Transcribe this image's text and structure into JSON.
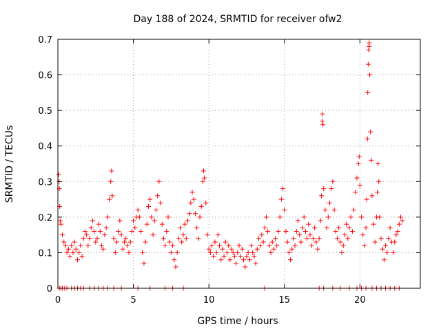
{
  "chart_data": {
    "type": "scatter",
    "title": "Day 188 of 2024, SRMTID for receiver ofw2",
    "xlabel": "GPS time / hours",
    "ylabel": "SRMTID / TECUs",
    "xlim": [
      0,
      24
    ],
    "ylim": [
      0,
      0.7
    ],
    "xticks": [
      0,
      5,
      10,
      15,
      20
    ],
    "xtick_labels": [
      "0",
      "5",
      "10",
      "15",
      "20"
    ],
    "yticks": [
      0,
      0.1,
      0.2,
      0.3,
      0.4,
      0.5,
      0.6,
      0.7
    ],
    "ytick_labels": [
      "0",
      "0.1",
      "0.2",
      "0.3",
      "0.4",
      "0.5",
      "0.6",
      "0.7"
    ],
    "grid": true,
    "marker": "+",
    "color": "#ff0000",
    "series": [
      {
        "name": "SRMTID",
        "points": [
          [
            0.05,
            0.32
          ],
          [
            0.08,
            0.3
          ],
          [
            0.1,
            0.28
          ],
          [
            0.12,
            0.23
          ],
          [
            0.15,
            0.19
          ],
          [
            0.2,
            0.18
          ],
          [
            0.3,
            0.15
          ],
          [
            0.4,
            0.13
          ],
          [
            0.5,
            0.12
          ],
          [
            0.6,
            0.1
          ],
          [
            0.7,
            0.11
          ],
          [
            0.8,
            0.09
          ],
          [
            0.9,
            0.12
          ],
          [
            1.0,
            0.1
          ],
          [
            1.1,
            0.13
          ],
          [
            1.2,
            0.11
          ],
          [
            1.3,
            0.08
          ],
          [
            1.4,
            0.1
          ],
          [
            1.5,
            0.12
          ],
          [
            1.6,
            0.09
          ],
          [
            1.7,
            0.14
          ],
          [
            1.8,
            0.16
          ],
          [
            1.9,
            0.15
          ],
          [
            2.0,
            0.12
          ],
          [
            2.1,
            0.14
          ],
          [
            2.2,
            0.17
          ],
          [
            2.3,
            0.19
          ],
          [
            2.4,
            0.16
          ],
          [
            2.5,
            0.13
          ],
          [
            2.6,
            0.14
          ],
          [
            2.7,
            0.18
          ],
          [
            2.8,
            0.16
          ],
          [
            2.9,
            0.12
          ],
          [
            3.0,
            0.11
          ],
          [
            3.1,
            0.15
          ],
          [
            3.2,
            0.17
          ],
          [
            3.3,
            0.2
          ],
          [
            3.4,
            0.25
          ],
          [
            3.5,
            0.3
          ],
          [
            3.55,
            0.33
          ],
          [
            3.6,
            0.26
          ],
          [
            3.7,
            0.14
          ],
          [
            3.8,
            0.1
          ],
          [
            3.9,
            0.13
          ],
          [
            4.0,
            0.16
          ],
          [
            4.1,
            0.19
          ],
          [
            4.2,
            0.15
          ],
          [
            4.3,
            0.11
          ],
          [
            4.4,
            0.13
          ],
          [
            4.5,
            0.14
          ],
          [
            4.6,
            0.12
          ],
          [
            4.7,
            0.1
          ],
          [
            4.8,
            0.13
          ],
          [
            4.9,
            0.16
          ],
          [
            5.0,
            0.19
          ],
          [
            5.1,
            0.17
          ],
          [
            5.2,
            0.2
          ],
          [
            5.3,
            0.22
          ],
          [
            5.4,
            0.2
          ],
          [
            5.5,
            0.16
          ],
          [
            5.6,
            0.1
          ],
          [
            5.7,
            0.07
          ],
          [
            5.8,
            0.13
          ],
          [
            5.9,
            0.18
          ],
          [
            6.0,
            0.23
          ],
          [
            6.1,
            0.25
          ],
          [
            6.2,
            0.2
          ],
          [
            6.3,
            0.15
          ],
          [
            6.4,
            0.19
          ],
          [
            6.5,
            0.22
          ],
          [
            6.6,
            0.26
          ],
          [
            6.7,
            0.3
          ],
          [
            6.8,
            0.24
          ],
          [
            6.9,
            0.18
          ],
          [
            7.0,
            0.14
          ],
          [
            7.1,
            0.12
          ],
          [
            7.2,
            0.16
          ],
          [
            7.3,
            0.2
          ],
          [
            7.4,
            0.13
          ],
          [
            7.5,
            0.1
          ],
          [
            7.6,
            0.12
          ],
          [
            7.7,
            0.08
          ],
          [
            7.8,
            0.06
          ],
          [
            7.9,
            0.1
          ],
          [
            8.0,
            0.14
          ],
          [
            8.1,
            0.17
          ],
          [
            8.2,
            0.13
          ],
          [
            8.3,
            0.15
          ],
          [
            8.4,
            0.18
          ],
          [
            8.5,
            0.14
          ],
          [
            8.6,
            0.19
          ],
          [
            8.7,
            0.21
          ],
          [
            8.8,
            0.24
          ],
          [
            8.9,
            0.27
          ],
          [
            9.0,
            0.25
          ],
          [
            9.1,
            0.21
          ],
          [
            9.2,
            0.17
          ],
          [
            9.3,
            0.14
          ],
          [
            9.4,
            0.2
          ],
          [
            9.5,
            0.23
          ],
          [
            9.6,
            0.3
          ],
          [
            9.65,
            0.33
          ],
          [
            9.7,
            0.31
          ],
          [
            9.8,
            0.24
          ],
          [
            9.9,
            0.15
          ],
          [
            10.0,
            0.11
          ],
          [
            10.1,
            0.1
          ],
          [
            10.2,
            0.12
          ],
          [
            10.3,
            0.09
          ],
          [
            10.4,
            0.13
          ],
          [
            10.5,
            0.1
          ],
          [
            10.6,
            0.15
          ],
          [
            10.7,
            0.12
          ],
          [
            10.8,
            0.08
          ],
          [
            10.9,
            0.11
          ],
          [
            11.0,
            0.09
          ],
          [
            11.1,
            0.13
          ],
          [
            11.2,
            0.1
          ],
          [
            11.3,
            0.12
          ],
          [
            11.4,
            0.08
          ],
          [
            11.5,
            0.11
          ],
          [
            11.6,
            0.1
          ],
          [
            11.7,
            0.09
          ],
          [
            11.8,
            0.07
          ],
          [
            11.9,
            0.1
          ],
          [
            12.0,
            0.12
          ],
          [
            12.1,
            0.09
          ],
          [
            12.2,
            0.11
          ],
          [
            12.3,
            0.08
          ],
          [
            12.4,
            0.06
          ],
          [
            12.5,
            0.09
          ],
          [
            12.6,
            0.1
          ],
          [
            12.7,
            0.08
          ],
          [
            12.8,
            0.12
          ],
          [
            12.9,
            0.1
          ],
          [
            13.0,
            0.09
          ],
          [
            13.1,
            0.07
          ],
          [
            13.2,
            0.11
          ],
          [
            13.3,
            0.14
          ],
          [
            13.4,
            0.12
          ],
          [
            13.5,
            0.15
          ],
          [
            13.6,
            0.13
          ],
          [
            13.7,
            0.17
          ],
          [
            13.8,
            0.2
          ],
          [
            13.9,
            0.16
          ],
          [
            14.0,
            0.12
          ],
          [
            14.1,
            0.1
          ],
          [
            14.2,
            0.13
          ],
          [
            14.3,
            0.11
          ],
          [
            14.4,
            0.14
          ],
          [
            14.5,
            0.12
          ],
          [
            14.6,
            0.16
          ],
          [
            14.7,
            0.2
          ],
          [
            14.8,
            0.25
          ],
          [
            14.9,
            0.28
          ],
          [
            15.0,
            0.22
          ],
          [
            15.1,
            0.16
          ],
          [
            15.2,
            0.13
          ],
          [
            15.3,
            0.1
          ],
          [
            15.4,
            0.08
          ],
          [
            15.5,
            0.11
          ],
          [
            15.6,
            0.14
          ],
          [
            15.7,
            0.12
          ],
          [
            15.8,
            0.16
          ],
          [
            15.9,
            0.19
          ],
          [
            16.0,
            0.15
          ],
          [
            16.1,
            0.13
          ],
          [
            16.2,
            0.17
          ],
          [
            16.3,
            0.2
          ],
          [
            16.4,
            0.16
          ],
          [
            16.5,
            0.14
          ],
          [
            16.6,
            0.18
          ],
          [
            16.7,
            0.15
          ],
          [
            16.8,
            0.12
          ],
          [
            16.9,
            0.14
          ],
          [
            17.0,
            0.17
          ],
          [
            17.1,
            0.13
          ],
          [
            17.2,
            0.11
          ],
          [
            17.3,
            0.14
          ],
          [
            17.4,
            0.19
          ],
          [
            17.45,
            0.26
          ],
          [
            17.5,
            0.47
          ],
          [
            17.52,
            0.49
          ],
          [
            17.55,
            0.46
          ],
          [
            17.6,
            0.28
          ],
          [
            17.7,
            0.22
          ],
          [
            17.8,
            0.17
          ],
          [
            17.9,
            0.2
          ],
          [
            18.0,
            0.24
          ],
          [
            18.1,
            0.28
          ],
          [
            18.2,
            0.3
          ],
          [
            18.3,
            0.22
          ],
          [
            18.4,
            0.16
          ],
          [
            18.5,
            0.14
          ],
          [
            18.6,
            0.17
          ],
          [
            18.7,
            0.13
          ],
          [
            18.8,
            0.1
          ],
          [
            18.9,
            0.12
          ],
          [
            19.0,
            0.15
          ],
          [
            19.1,
            0.18
          ],
          [
            19.2,
            0.14
          ],
          [
            19.3,
            0.17
          ],
          [
            19.4,
            0.2
          ],
          [
            19.5,
            0.16
          ],
          [
            19.6,
            0.22
          ],
          [
            19.7,
            0.27
          ],
          [
            19.8,
            0.31
          ],
          [
            19.9,
            0.35
          ],
          [
            19.95,
            0.37
          ],
          [
            20.0,
            0.29
          ],
          [
            20.1,
            0.2
          ],
          [
            20.2,
            0.15
          ],
          [
            20.3,
            0.12
          ],
          [
            20.4,
            0.17
          ],
          [
            20.45,
            0.25
          ],
          [
            20.5,
            0.42
          ],
          [
            20.52,
            0.55
          ],
          [
            20.55,
            0.63
          ],
          [
            20.58,
            0.67
          ],
          [
            20.6,
            0.68
          ],
          [
            20.62,
            0.69
          ],
          [
            20.65,
            0.6
          ],
          [
            20.7,
            0.44
          ],
          [
            20.75,
            0.36
          ],
          [
            20.8,
            0.26
          ],
          [
            20.9,
            0.18
          ],
          [
            21.0,
            0.13
          ],
          [
            21.1,
            0.2
          ],
          [
            21.15,
            0.27
          ],
          [
            21.2,
            0.35
          ],
          [
            21.25,
            0.3
          ],
          [
            21.3,
            0.2
          ],
          [
            21.4,
            0.14
          ],
          [
            21.5,
            0.11
          ],
          [
            21.6,
            0.08
          ],
          [
            21.7,
            0.12
          ],
          [
            21.8,
            0.1
          ],
          [
            21.9,
            0.14
          ],
          [
            22.0,
            0.17
          ],
          [
            22.1,
            0.13
          ],
          [
            22.2,
            0.1
          ],
          [
            22.3,
            0.13
          ],
          [
            22.4,
            0.15
          ],
          [
            22.5,
            0.16
          ],
          [
            22.6,
            0.18
          ],
          [
            22.7,
            0.2
          ],
          [
            22.8,
            0.19
          ]
        ],
        "zero_markers_x": [
          0.1,
          0.2,
          0.3,
          0.45,
          0.6,
          0.9,
          1.1,
          1.3,
          1.5,
          1.7,
          2.1,
          2.4,
          2.7,
          3.0,
          3.3,
          3.7,
          4.2,
          5.3,
          6.1,
          7.1,
          7.6,
          8.3,
          13.7,
          17.3,
          17.6,
          18.2,
          18.7,
          19.3,
          19.8,
          20.1,
          20.4,
          20.8,
          21.1,
          21.4,
          21.7,
          22.0,
          22.3,
          22.6
        ]
      }
    ]
  }
}
